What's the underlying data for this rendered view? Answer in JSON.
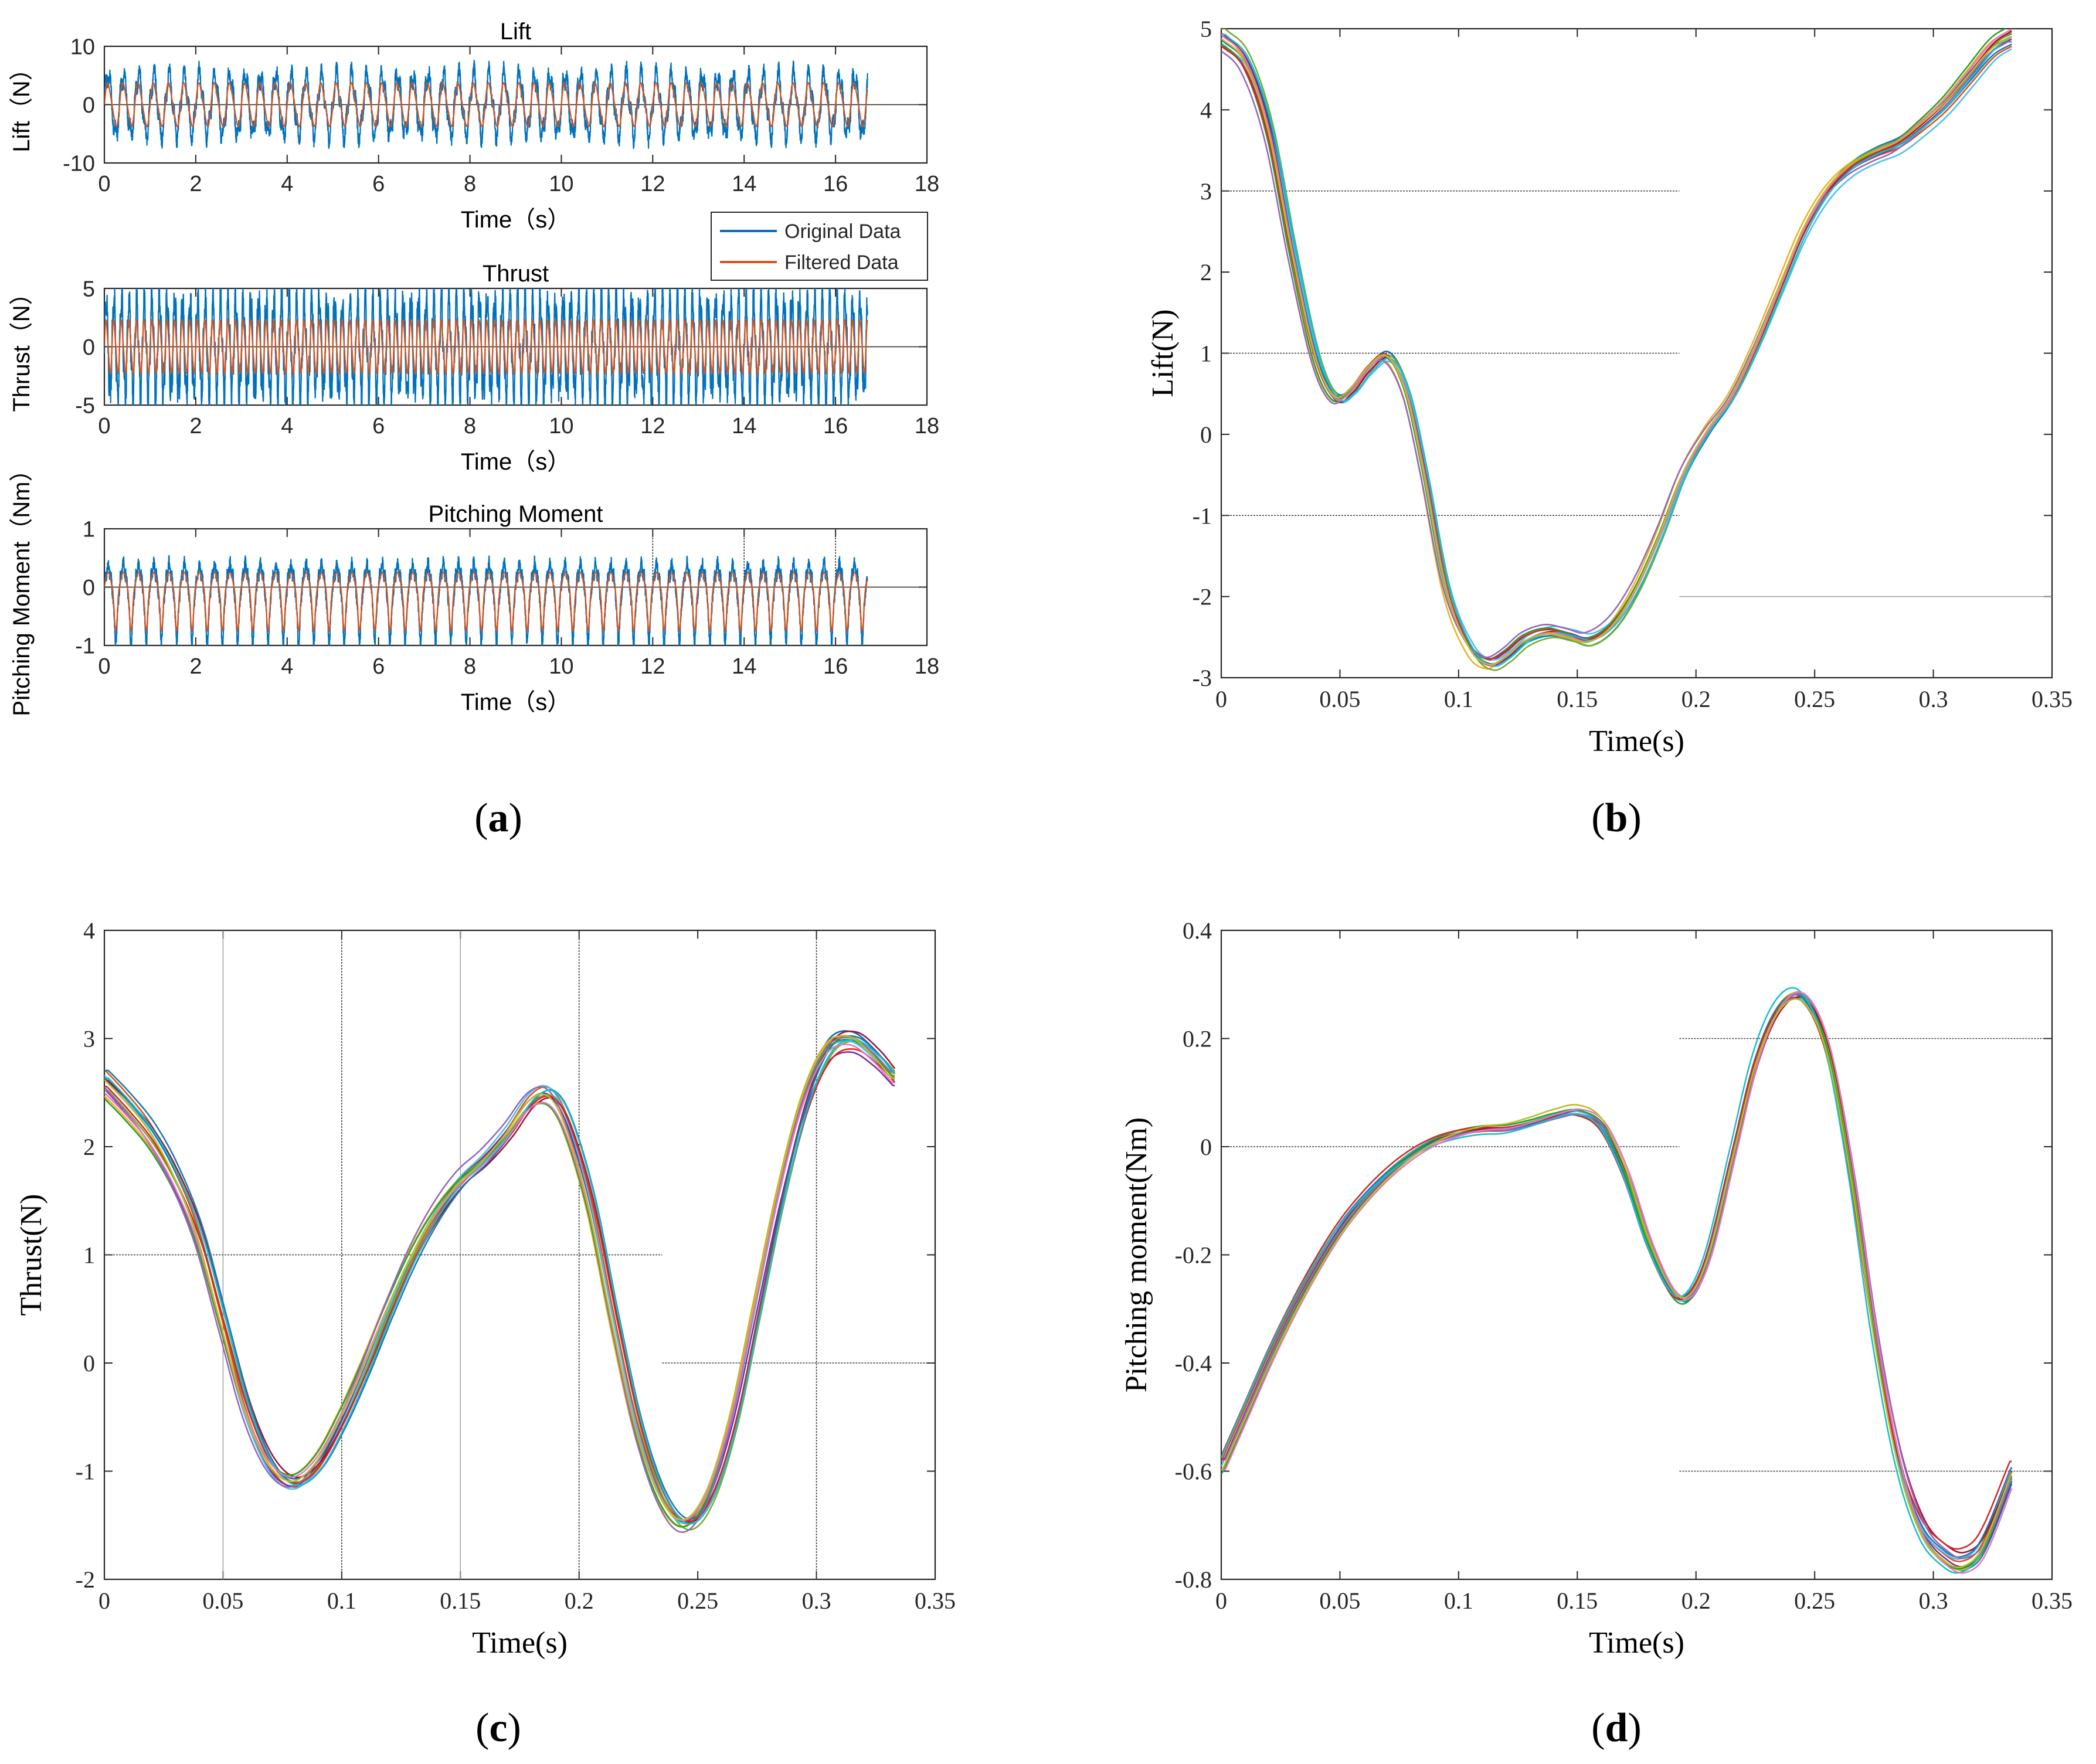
{
  "colors": {
    "original": "#0072BD",
    "filtered": "#D95319",
    "palette": [
      "#0072BD",
      "#D95319",
      "#EDB120",
      "#7E2F8E",
      "#77AC30",
      "#4DBEEE",
      "#A2142F",
      "#1f77b4",
      "#2ca02c",
      "#d62728",
      "#9467bd",
      "#17becf",
      "#e377c2",
      "#bcbd22"
    ]
  },
  "panel_tags": {
    "a": {
      "open": "(",
      "letter": "a",
      "close": ")"
    },
    "b": {
      "open": "(",
      "letter": "b",
      "close": ")"
    },
    "c": {
      "open": "(",
      "letter": "c",
      "close": ")"
    },
    "d": {
      "open": "(",
      "letter": "d",
      "close": ")"
    }
  },
  "legend": {
    "original": "Original Data",
    "filtered": "Filtered Data"
  },
  "chart_data": [
    {
      "id": "a1",
      "type": "line",
      "title": "Lift",
      "xlabel": "Time（s）",
      "ylabel": "Lift（N）",
      "xlim": [
        0,
        18
      ],
      "ylim": [
        -10,
        10
      ],
      "xticks": [
        0,
        2,
        4,
        6,
        8,
        10,
        12,
        14,
        16,
        18
      ],
      "yticks": [
        -10,
        0,
        10
      ],
      "series": [
        {
          "name": "Original Data",
          "duration": 16.7,
          "frequency_hz": 3,
          "amplitude": 5.0,
          "noise": 1.2
        },
        {
          "name": "Filtered Data",
          "duration": 16.7,
          "frequency_hz": 3,
          "amplitude": 3.6
        }
      ]
    },
    {
      "id": "a2",
      "type": "line",
      "title": "Thrust",
      "xlabel": "Time（s）",
      "ylabel": "Thrust（N）",
      "xlim": [
        0,
        18
      ],
      "ylim": [
        -5,
        5
      ],
      "xticks": [
        0,
        2,
        4,
        6,
        8,
        10,
        12,
        14,
        16,
        18
      ],
      "yticks": [
        -5,
        0,
        5
      ],
      "series": [
        {
          "name": "Original Data",
          "duration": 16.7,
          "frequency_hz": 6,
          "amplitude": 4.0,
          "noise": 1.0
        },
        {
          "name": "Filtered Data",
          "duration": 16.7,
          "frequency_hz": 6,
          "amplitude": 2.2
        }
      ]
    },
    {
      "id": "a3",
      "type": "line",
      "title": "Pitching Moment",
      "xlabel": "Time（s）",
      "ylabel": "Pitching Moment（Nm）",
      "xlim": [
        0,
        18
      ],
      "ylim": [
        -1,
        1
      ],
      "xticks": [
        0,
        2,
        4,
        6,
        8,
        10,
        12,
        14,
        16,
        18
      ],
      "yticks": [
        -1,
        0,
        1
      ],
      "series": [
        {
          "name": "Original Data",
          "duration": 16.7,
          "frequency_hz": 3,
          "amplitude_pos": 0.35,
          "amplitude_neg": -0.9,
          "noise": 0.12
        },
        {
          "name": "Filtered Data",
          "duration": 16.7,
          "frequency_hz": 3,
          "amplitude_pos": 0.25,
          "amplitude_neg": -0.75
        }
      ]
    },
    {
      "id": "b",
      "type": "line",
      "title": "",
      "xlabel": "Time(s)",
      "ylabel": "Lift(N)",
      "xlim": [
        0,
        0.35
      ],
      "ylim": [
        -3,
        5
      ],
      "xticks": [
        0,
        0.05,
        0.1,
        0.15,
        0.2,
        0.25,
        0.3,
        0.35
      ],
      "yticks": [
        -3,
        -2,
        -1,
        0,
        1,
        2,
        3,
        4,
        5
      ],
      "series_count": 14,
      "base_curve": {
        "x": [
          0,
          0.01,
          0.02,
          0.03,
          0.04,
          0.048,
          0.055,
          0.062,
          0.07,
          0.078,
          0.085,
          0.095,
          0.105,
          0.113,
          0.12,
          0.128,
          0.138,
          0.147,
          0.155,
          0.165,
          0.175,
          0.185,
          0.195,
          0.205,
          0.215,
          0.225,
          0.235,
          0.245,
          0.255,
          0.265,
          0.275,
          0.285,
          0.295,
          0.305,
          0.315,
          0.325,
          0.333
        ],
        "y": [
          4.85,
          4.55,
          3.7,
          2.2,
          0.9,
          0.42,
          0.52,
          0.78,
          0.93,
          0.5,
          -0.4,
          -1.9,
          -2.62,
          -2.8,
          -2.7,
          -2.5,
          -2.4,
          -2.45,
          -2.5,
          -2.3,
          -1.85,
          -1.2,
          -0.45,
          0.05,
          0.45,
          1.05,
          1.75,
          2.45,
          2.95,
          3.25,
          3.42,
          3.55,
          3.78,
          4.05,
          4.4,
          4.75,
          4.9
        ]
      },
      "spread": 0.08
    },
    {
      "id": "c",
      "type": "line",
      "title": "",
      "xlabel": "Time(s)",
      "ylabel": "Thrust(N)",
      "xlim": [
        0,
        0.35
      ],
      "ylim": [
        -2,
        4
      ],
      "xticks": [
        0,
        0.05,
        0.1,
        0.15,
        0.2,
        0.25,
        0.3,
        0.35
      ],
      "yticks": [
        -2,
        -1,
        0,
        1,
        2,
        3,
        4
      ],
      "series_count": 14,
      "base_curve": {
        "x": [
          0,
          0.01,
          0.02,
          0.03,
          0.04,
          0.05,
          0.06,
          0.07,
          0.08,
          0.09,
          0.1,
          0.11,
          0.12,
          0.13,
          0.14,
          0.15,
          0.16,
          0.17,
          0.18,
          0.188,
          0.195,
          0.205,
          0.215,
          0.225,
          0.235,
          0.245,
          0.255,
          0.265,
          0.275,
          0.285,
          0.295,
          0.305,
          0.315,
          0.325,
          0.333
        ],
        "y": [
          2.62,
          2.38,
          2.1,
          1.7,
          1.15,
          0.35,
          -0.45,
          -0.95,
          -1.12,
          -0.95,
          -0.55,
          -0.05,
          0.5,
          1.0,
          1.4,
          1.7,
          1.9,
          2.15,
          2.45,
          2.5,
          2.25,
          1.5,
          0.4,
          -0.6,
          -1.25,
          -1.5,
          -1.25,
          -0.55,
          0.5,
          1.55,
          2.4,
          2.9,
          3.0,
          2.85,
          2.65
        ]
      },
      "spread": 0.09
    },
    {
      "id": "d",
      "type": "line",
      "title": "",
      "xlabel": "Time(s)",
      "ylabel": "Pitching moment(Nm)",
      "xlim": [
        0,
        0.35
      ],
      "ylim": [
        -0.8,
        0.4
      ],
      "xticks": [
        0,
        0.05,
        0.1,
        0.15,
        0.2,
        0.25,
        0.3,
        0.35
      ],
      "yticks": [
        -0.8,
        -0.6,
        -0.4,
        -0.2,
        0,
        0.2,
        0.4
      ],
      "series_count": 14,
      "base_curve": {
        "x": [
          0,
          0.01,
          0.02,
          0.03,
          0.04,
          0.05,
          0.06,
          0.07,
          0.08,
          0.09,
          0.1,
          0.11,
          0.12,
          0.13,
          0.14,
          0.15,
          0.16,
          0.17,
          0.18,
          0.19,
          0.197,
          0.205,
          0.215,
          0.225,
          0.235,
          0.245,
          0.255,
          0.265,
          0.275,
          0.285,
          0.295,
          0.305,
          0.312,
          0.32,
          0.333
        ],
        "y": [
          -0.59,
          -0.49,
          -0.39,
          -0.3,
          -0.22,
          -0.15,
          -0.095,
          -0.05,
          -0.015,
          0.01,
          0.025,
          0.033,
          0.035,
          0.045,
          0.058,
          0.065,
          0.04,
          -0.05,
          -0.18,
          -0.27,
          -0.275,
          -0.2,
          -0.02,
          0.16,
          0.26,
          0.275,
          0.18,
          -0.05,
          -0.35,
          -0.58,
          -0.71,
          -0.76,
          -0.77,
          -0.74,
          -0.6
        ]
      },
      "spread": 0.012
    }
  ]
}
